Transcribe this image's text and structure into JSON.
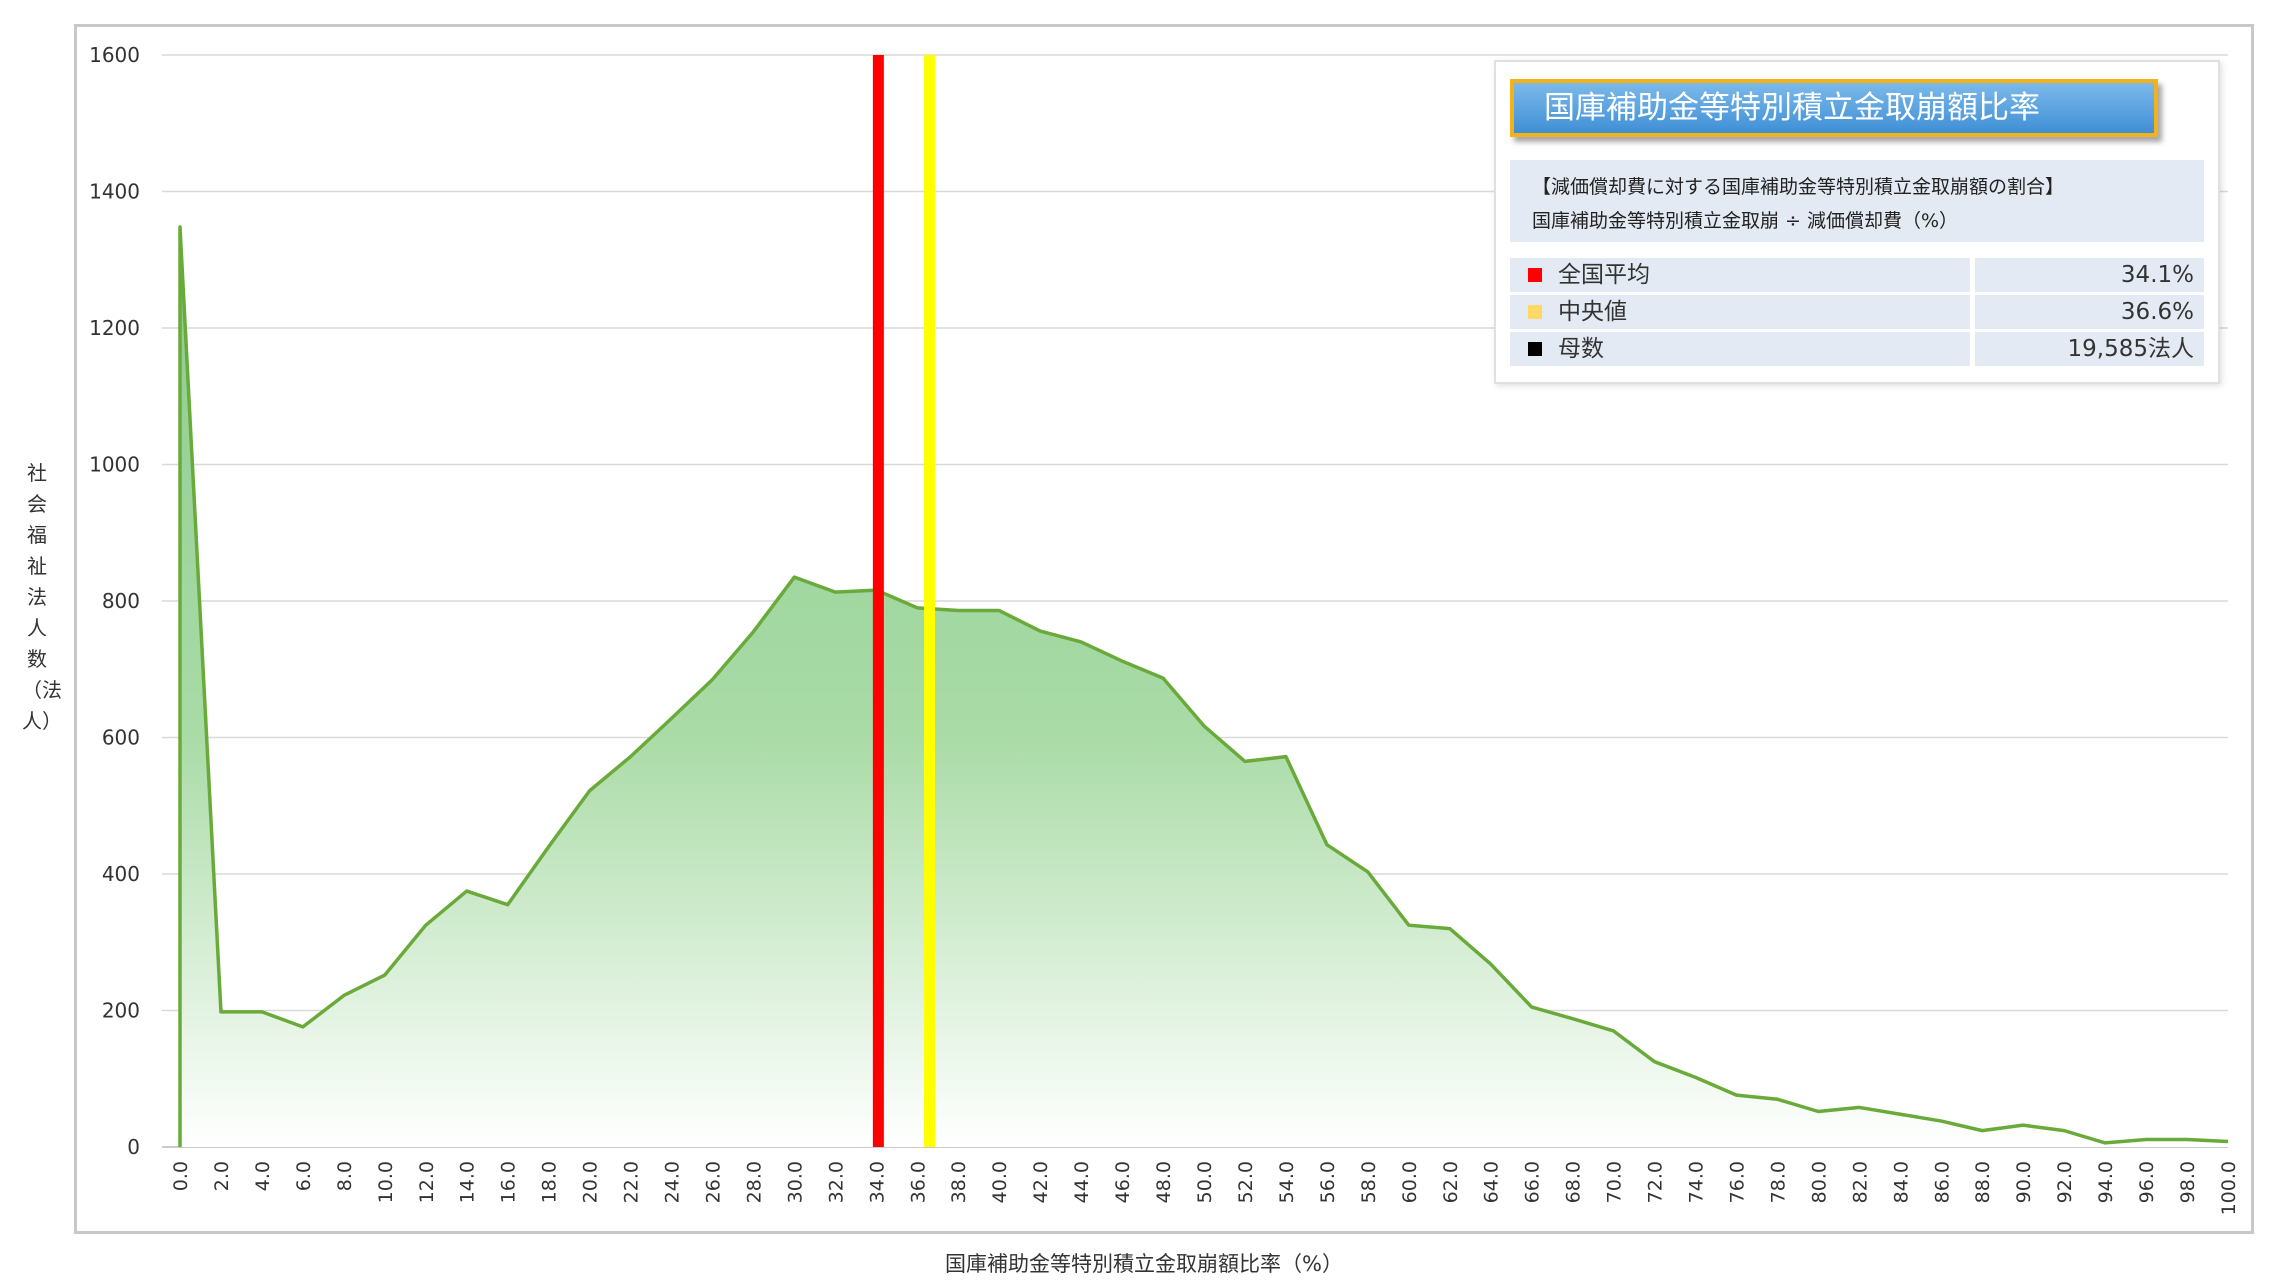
{
  "chart_data": {
    "type": "area",
    "xlabel": "国庫補助金等特別積立金取崩額比率（%）",
    "ylabel": "社会福祉法人数（法人）",
    "ylim": [
      0,
      1600
    ],
    "yticks": [
      "0",
      "200",
      "400",
      "600",
      "800",
      "1000",
      "1200",
      "1400",
      "1600"
    ],
    "x": [
      "0.0",
      "2.0",
      "4.0",
      "6.0",
      "8.0",
      "10.0",
      "12.0",
      "14.0",
      "16.0",
      "18.0",
      "20.0",
      "22.0",
      "24.0",
      "26.0",
      "28.0",
      "30.0",
      "32.0",
      "34.0",
      "36.0",
      "38.0",
      "40.0",
      "42.0",
      "44.0",
      "46.0",
      "48.0",
      "50.0",
      "52.0",
      "54.0",
      "56.0",
      "58.0",
      "60.0",
      "62.0",
      "64.0",
      "66.0",
      "68.0",
      "70.0",
      "72.0",
      "74.0",
      "76.0",
      "78.0",
      "80.0",
      "82.0",
      "84.0",
      "86.0",
      "88.0",
      "90.0",
      "92.0",
      "94.0",
      "96.0",
      "98.0",
      "100.0"
    ],
    "values": [
      1348,
      198,
      198,
      176,
      222,
      252,
      325,
      375,
      355,
      440,
      522,
      572,
      628,
      685,
      755,
      835,
      813,
      816,
      790,
      786,
      786,
      756,
      740,
      712,
      687,
      617,
      565,
      572,
      443,
      403,
      325,
      320,
      268,
      205,
      188,
      170,
      125,
      102,
      76,
      70,
      52,
      58,
      48,
      38,
      24,
      32,
      24,
      6,
      11,
      11,
      8
    ],
    "grid": true,
    "mean_line": 34.1,
    "median_line": 36.6,
    "colors": {
      "line": "#6aaa3a",
      "fill_top": "#8ccc90",
      "fill_bottom": "#ffffff",
      "mean": "#ff0000",
      "median": "#ffff00",
      "grid": "#d9d9d9"
    }
  },
  "legend": {
    "title": "国庫補助金等特別積立金取崩額比率",
    "desc_line1": "【減価償却費に対する国庫補助金等特別積立金取崩額の割合】",
    "desc_line2": "国庫補助金等特別積立金取崩 ÷ 減価償却費（%）",
    "rows": [
      {
        "label": "全国平均",
        "value": "34.1%",
        "color": "#ff0000"
      },
      {
        "label": "中央値",
        "value": "36.6%",
        "color": "#ffd966"
      },
      {
        "label": "母数",
        "value": "19,585法人",
        "color": "#000000"
      }
    ]
  }
}
